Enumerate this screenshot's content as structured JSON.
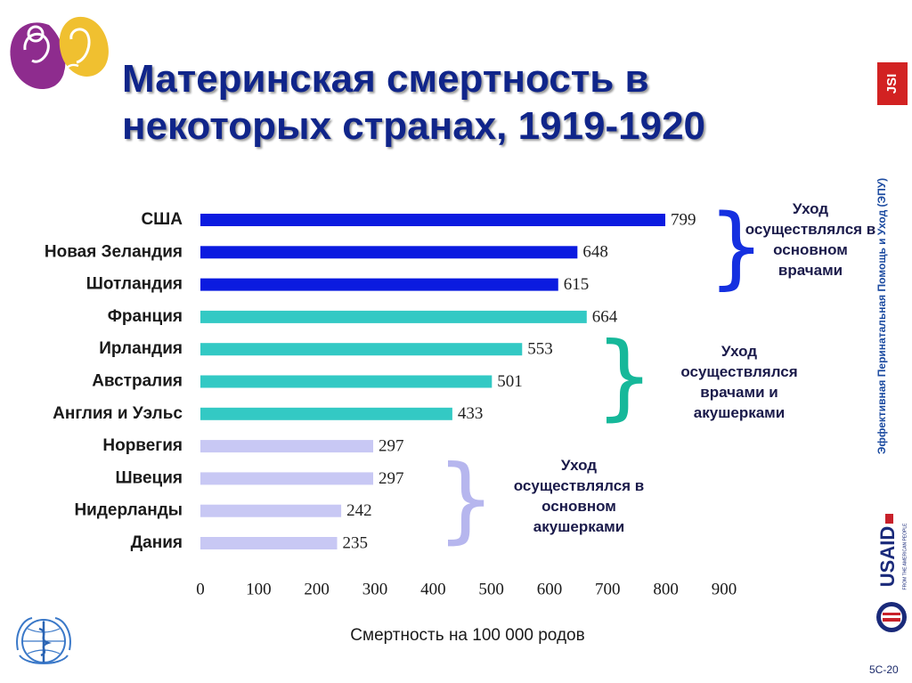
{
  "header": {
    "title_line1": "Материнская смертность в",
    "title_line2": "некоторых странах, 1919-1920"
  },
  "chart_data": {
    "type": "bar",
    "orientation": "horizontal",
    "categories": [
      "США",
      "Новая Зеландия",
      "Шотландия",
      "Франция",
      "Ирландия",
      "Австралия",
      "Англия и Уэльс",
      "Норвегия",
      "Швеция",
      "Нидерланды",
      "Дания"
    ],
    "values": [
      799,
      648,
      615,
      664,
      553,
      501,
      433,
      297,
      297,
      242,
      235
    ],
    "bar_colors": [
      "#0b1be0",
      "#0b1be0",
      "#0b1be0",
      "#33c9c4",
      "#33c9c4",
      "#33c9c4",
      "#33c9c4",
      "#c8c8f4",
      "#c8c8f4",
      "#c8c8f4",
      "#c8c8f4"
    ],
    "xticks": [
      0,
      100,
      200,
      300,
      400,
      500,
      600,
      700,
      800,
      900
    ],
    "xlim": [
      0,
      900
    ],
    "xlabel": "Смертность на 100 000 родов",
    "grid": false,
    "legend": "none",
    "annotations": [
      {
        "text": "Уход осуществлялся в основном врачами",
        "lines": [
          "Уход",
          "осуществлялся в",
          "основном",
          "врачами"
        ],
        "categories": [
          "США",
          "Новая Зеландия",
          "Шотландия"
        ],
        "brace_color": "#1530e0"
      },
      {
        "text": "Уход осуществлялся врачами и акушерками",
        "lines": [
          "Уход",
          "осуществлялся",
          "врачами и",
          "акушерками"
        ],
        "categories": [
          "Ирландия",
          "Австралия",
          "Англия и Уэльс"
        ],
        "brace_color": "#16b89a"
      },
      {
        "text": "Уход осуществлялся в основном акушерками",
        "lines": [
          "Уход",
          "осуществлялся в",
          "основном",
          "акушерками"
        ],
        "categories": [
          "Швеция",
          "Нидерланды",
          "Дания"
        ],
        "brace_color": "#b6b6ee"
      }
    ]
  },
  "sidebar": {
    "vertical_text": "Эффективная Перинатальная Помощь и Уход (ЭПУ)",
    "jsi_logo_text": "JSI",
    "usaid_logo_text": "USAID",
    "usaid_tagline": "FROM THE AMERICAN PEOPLE"
  },
  "footer": {
    "slide_number": "5C-20"
  },
  "icons": {
    "top_left": "mother-and-child-logo-icon",
    "bottom_left": "who-emblem-icon"
  }
}
